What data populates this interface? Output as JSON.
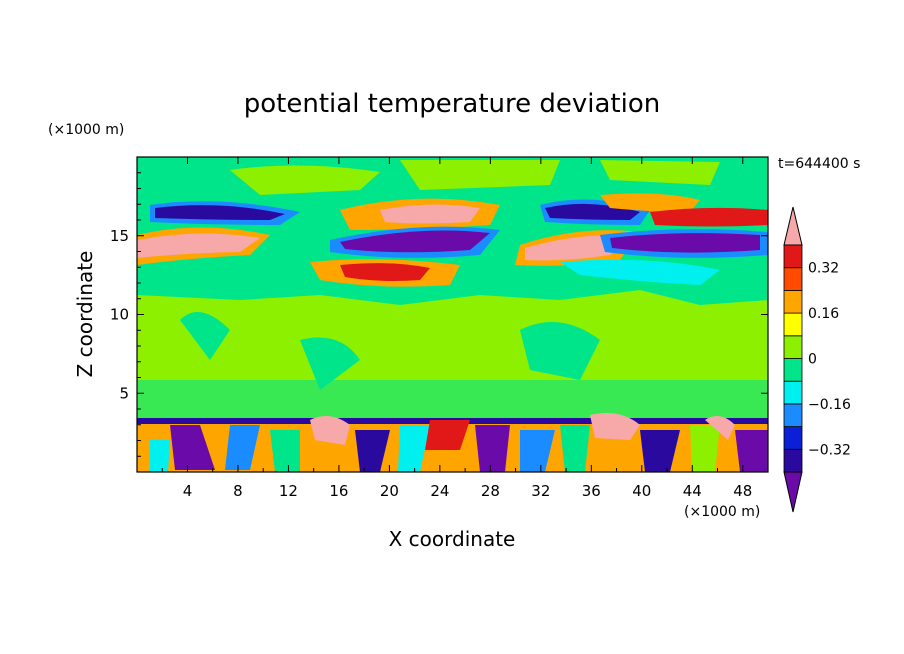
{
  "chart_data": {
    "type": "heatmap",
    "title": "potential temperature deviation",
    "xlabel": "X coordinate",
    "ylabel": "Z coordinate",
    "x_unit": "(×1000 m)",
    "y_unit": "(×1000 m)",
    "time_label": "t=644400 s",
    "xlim": [
      0,
      50
    ],
    "ylim": [
      0,
      20
    ],
    "x_ticks": [
      4,
      8,
      12,
      16,
      20,
      24,
      28,
      32,
      36,
      40,
      44,
      48
    ],
    "y_ticks": [
      5,
      10,
      15
    ],
    "grid": false,
    "colorbar": {
      "levels": [
        -0.4,
        -0.32,
        -0.24,
        -0.16,
        -0.08,
        0,
        0.08,
        0.16,
        0.24,
        0.32,
        0.4
      ],
      "tick_labels": [
        "0.32",
        "0.16",
        "0",
        "−0.16",
        "−0.32"
      ],
      "tick_values": [
        0.32,
        0.16,
        0,
        -0.16,
        -0.32
      ],
      "colors": [
        "#6a0aa8",
        "#2a0a9e",
        "#0a1fd6",
        "#1a8cff",
        "#00f0f0",
        "#00e58a",
        "#8cf000",
        "#ffff00",
        "#ffa500",
        "#ff4a00",
        "#e01818",
        "#f7a8a8"
      ]
    }
  }
}
